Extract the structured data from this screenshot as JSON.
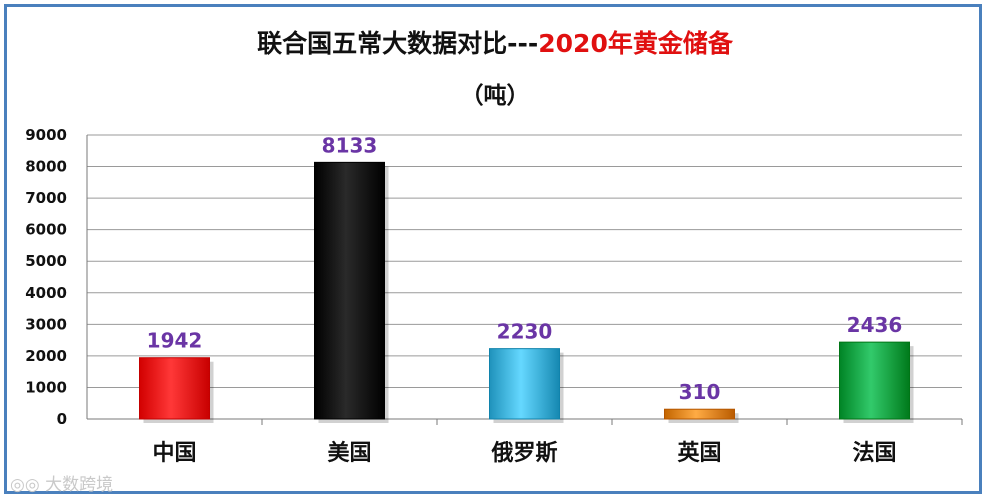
{
  "chart_data": {
    "type": "bar",
    "title_main": "联合国五常大数据对比---",
    "title_highlight": "2020年黄金储备",
    "unit_label": "（吨）",
    "categories": [
      "中国",
      "美国",
      "俄罗斯",
      "英国",
      "法国"
    ],
    "values": [
      1942,
      8133,
      2230,
      310,
      2436
    ],
    "colors": [
      "#ff1f1f",
      "#111111",
      "#4cbfe8",
      "#f0922b",
      "#19b152"
    ],
    "ylim": [
      0,
      9000
    ],
    "yticks": [
      0,
      1000,
      2000,
      3000,
      4000,
      5000,
      6000,
      7000,
      8000,
      9000
    ],
    "grid": true,
    "data_label_color": "#6a35a5"
  },
  "watermark": "大数跨境"
}
